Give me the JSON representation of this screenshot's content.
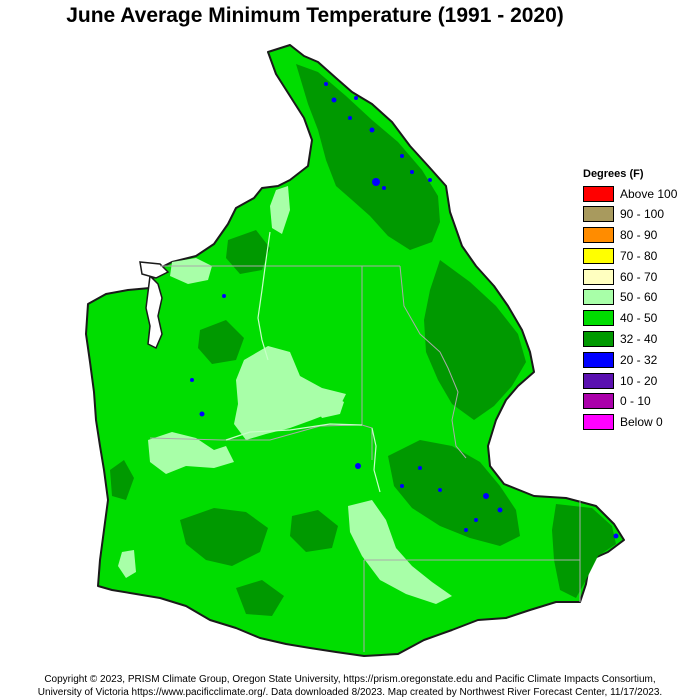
{
  "title": "June Average Minimum Temperature (1991 - 2020)",
  "legend": {
    "title": "Degrees (F)",
    "items": [
      {
        "label": "Above 100",
        "color": "#ff0000"
      },
      {
        "label": "90 - 100",
        "color": "#a89a5e"
      },
      {
        "label": "80 - 90",
        "color": "#ff8c00"
      },
      {
        "label": "70 - 80",
        "color": "#ffff00"
      },
      {
        "label": "60 - 70",
        "color": "#ffffc0"
      },
      {
        "label": "50 - 60",
        "color": "#a8ffa8"
      },
      {
        "label": "40 - 50",
        "color": "#00dd00"
      },
      {
        "label": "32 - 40",
        "color": "#009900"
      },
      {
        "label": "20 - 32",
        "color": "#0000ff"
      },
      {
        "label": "10 - 20",
        "color": "#5a10b0"
      },
      {
        "label": "0 - 10",
        "color": "#aa00aa"
      },
      {
        "label": "Below 0",
        "color": "#ff00ff"
      }
    ]
  },
  "credits": {
    "line1": "Copyright © 2023, PRISM Climate Group, Oregon State University, https://prism.oregonstate.edu and Pacific Climate Impacts Consortium,",
    "line2": "University of Victoria https://www.pacificclimate.org/.  Data downloaded 8/2023. Map created by Northwest River Forecast Center, 11/17/2023."
  }
}
